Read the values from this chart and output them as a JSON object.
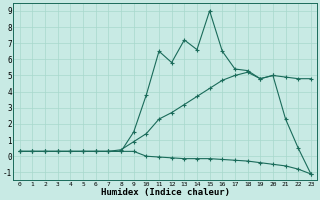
{
  "title": "",
  "xlabel": "Humidex (Indice chaleur)",
  "xlim": [
    -0.5,
    23.5
  ],
  "ylim": [
    -1.5,
    9.5
  ],
  "xticks": [
    0,
    1,
    2,
    3,
    4,
    5,
    6,
    7,
    8,
    9,
    10,
    11,
    12,
    13,
    14,
    15,
    16,
    17,
    18,
    19,
    20,
    21,
    22,
    23
  ],
  "yticks": [
    -1,
    0,
    1,
    2,
    3,
    4,
    5,
    6,
    7,
    8,
    9
  ],
  "bg_color": "#c8eae4",
  "line_color": "#1a6b5a",
  "grid_color": "#a8d8cc",
  "curve1_x": [
    0,
    1,
    2,
    3,
    4,
    5,
    6,
    7,
    8,
    9,
    10,
    11,
    12,
    13,
    14,
    15,
    16,
    17,
    18,
    19,
    20,
    21,
    22,
    23
  ],
  "curve1_y": [
    0.3,
    0.3,
    0.3,
    0.3,
    0.3,
    0.3,
    0.3,
    0.3,
    0.3,
    0.3,
    0.0,
    -0.05,
    -0.1,
    -0.15,
    -0.15,
    -0.15,
    -0.2,
    -0.25,
    -0.3,
    -0.4,
    -0.5,
    -0.6,
    -0.8,
    -1.1
  ],
  "curve2_x": [
    0,
    1,
    2,
    3,
    4,
    5,
    6,
    7,
    8,
    9,
    10,
    11,
    12,
    13,
    14,
    15,
    16,
    17,
    18,
    19,
    20,
    21,
    22,
    23
  ],
  "curve2_y": [
    0.3,
    0.3,
    0.3,
    0.3,
    0.3,
    0.3,
    0.3,
    0.3,
    0.4,
    0.9,
    1.4,
    2.3,
    2.7,
    3.2,
    3.7,
    4.2,
    4.7,
    5.0,
    5.2,
    4.8,
    5.0,
    4.9,
    4.8,
    4.8
  ],
  "curve3_x": [
    0,
    1,
    2,
    3,
    4,
    5,
    6,
    7,
    8,
    9,
    10,
    11,
    12,
    13,
    14,
    15,
    16,
    17,
    18,
    19,
    20,
    21,
    22,
    23
  ],
  "curve3_y": [
    0.3,
    0.3,
    0.3,
    0.3,
    0.3,
    0.3,
    0.3,
    0.3,
    0.3,
    1.5,
    3.8,
    6.5,
    5.8,
    7.2,
    6.6,
    9.0,
    6.5,
    5.4,
    5.3,
    4.8,
    5.0,
    2.3,
    0.5,
    -1.1
  ]
}
